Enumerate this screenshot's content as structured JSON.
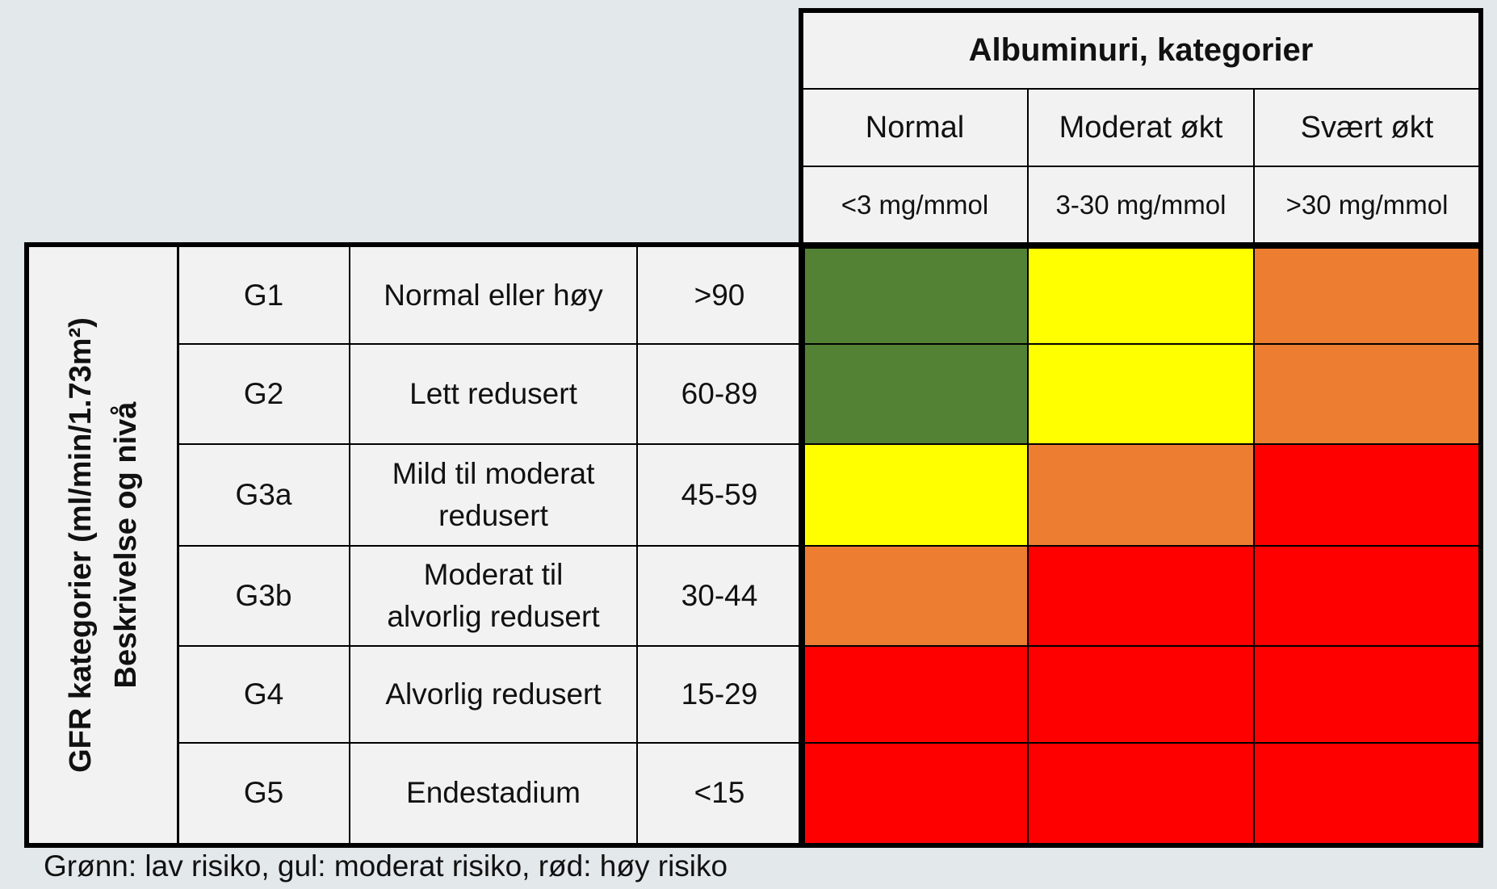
{
  "albuminuria": {
    "title": "Albuminuri, kategorier",
    "columns": [
      {
        "name": "Normal",
        "unit": "<3 mg/mmol"
      },
      {
        "name": "Moderat økt",
        "unit": "3-30 mg/mmol"
      },
      {
        "name": "Svært økt",
        "unit": ">30 mg/mmol"
      }
    ]
  },
  "gfr": {
    "side_label_line1": "GFR kategorier (ml/min/1.73m²)",
    "side_label_line2": "Beskrivelse og nivå",
    "rows": [
      {
        "code": "G1",
        "desc": "Normal eller høy",
        "value": ">90",
        "risk": [
          "green",
          "yellow",
          "orange"
        ]
      },
      {
        "code": "G2",
        "desc": "Lett redusert",
        "value": "60-89",
        "risk": [
          "green",
          "yellow",
          "orange"
        ]
      },
      {
        "code": "G3a",
        "desc": "Mild til moderat redusert",
        "value": "45-59",
        "risk": [
          "yellow",
          "orange",
          "red"
        ]
      },
      {
        "code": "G3b",
        "desc": "Moderat til alvorlig redusert",
        "value": "30-44",
        "risk": [
          "orange",
          "red",
          "red"
        ]
      },
      {
        "code": "G4",
        "desc": "Alvorlig redusert",
        "value": "15-29",
        "risk": [
          "red",
          "red",
          "red"
        ]
      },
      {
        "code": "G5",
        "desc": "Endestadium",
        "value": "<15",
        "risk": [
          "red",
          "red",
          "red"
        ]
      }
    ]
  },
  "colors": {
    "green": "#548235",
    "yellow": "#ffff00",
    "orange": "#ed7d31",
    "red": "#ff0000",
    "cell_background": "#f2f2f2",
    "page_background": "#e3e8ea"
  },
  "caption": "Grønn: lav risiko, gul: moderat risiko, rød: høy risiko"
}
